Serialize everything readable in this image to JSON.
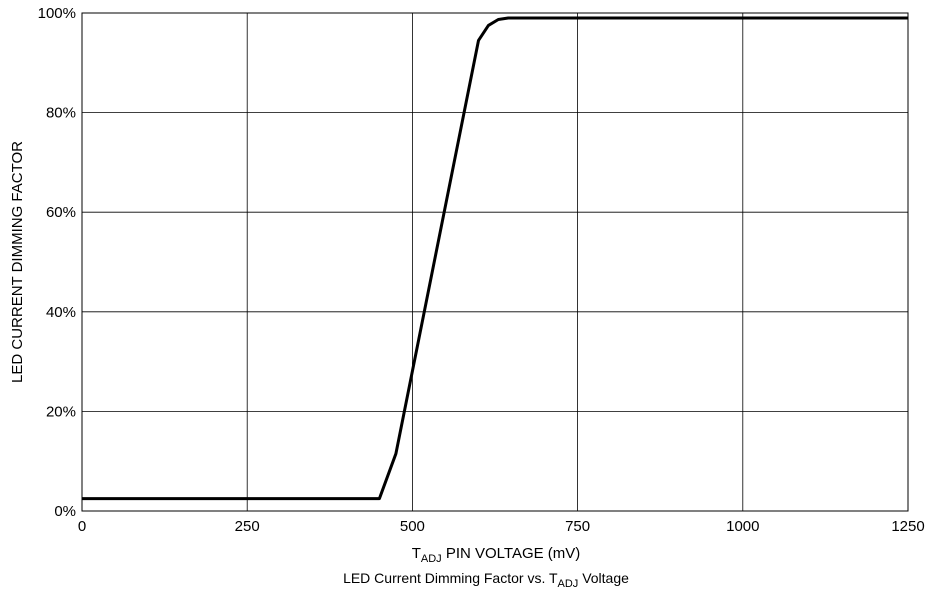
{
  "chart_data": {
    "type": "line",
    "title": "",
    "xlabel": {
      "base": "T",
      "sub": "ADJ",
      "rest": " PIN VOLTAGE (mV)"
    },
    "ylabel": "LED CURRENT DIMMING FACTOR",
    "caption": {
      "before": "LED Current Dimming Factor vs. T",
      "sub": "ADJ",
      "after": " Voltage"
    },
    "xlim": [
      0,
      1250
    ],
    "ylim": [
      0,
      100
    ],
    "x_ticks": [
      0,
      250,
      500,
      750,
      1000,
      1250
    ],
    "x_tick_labels": [
      "0",
      "250",
      "500",
      "750",
      "1000",
      "1250"
    ],
    "y_ticks": [
      0,
      20,
      40,
      60,
      80,
      100
    ],
    "y_tick_labels": [
      "0%",
      "20%",
      "40%",
      "60%",
      "80%",
      "100%"
    ],
    "grid": true,
    "line_color": "#000000",
    "series": [
      {
        "x": [
          0,
          450,
          475,
          600,
          615,
          630,
          645,
          1250
        ],
        "y": [
          2.5,
          2.5,
          11.5,
          94.5,
          97.5,
          98.7,
          99,
          99
        ]
      }
    ]
  }
}
